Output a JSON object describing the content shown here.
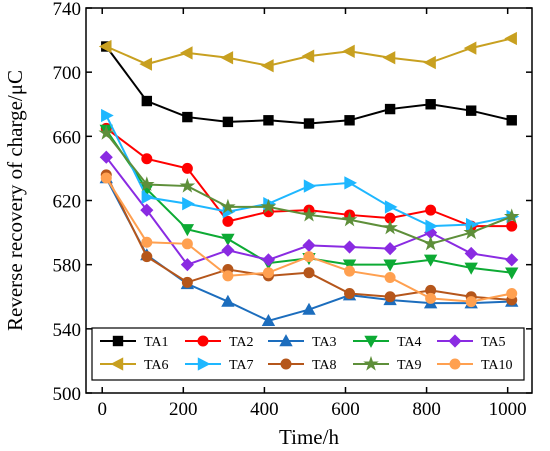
{
  "chart_data": {
    "type": "line",
    "xlabel": "Time/h",
    "ylabel": "Reverse recovery of charge/μC",
    "xlim": [
      -40,
      1060
    ],
    "ylim": [
      500,
      740
    ],
    "xticks": [
      0,
      200,
      400,
      600,
      800,
      1000
    ],
    "yticks": [
      500,
      540,
      580,
      620,
      660,
      700,
      740
    ],
    "legend_position": "bottom (inside plot, two rows)",
    "grid": false,
    "x": [
      10,
      110,
      210,
      310,
      410,
      510,
      610,
      710,
      810,
      910,
      1010
    ],
    "series": [
      {
        "name": "TA1",
        "color": "#000000",
        "marker": "square",
        "values": [
          716,
          682,
          672,
          669,
          670,
          668,
          670,
          677,
          680,
          676,
          670
        ]
      },
      {
        "name": "TA2",
        "color": "#ff0000",
        "marker": "circle",
        "values": [
          665,
          646,
          640,
          607,
          613,
          614,
          611,
          609,
          614,
          604,
          604
        ]
      },
      {
        "name": "TA3",
        "color": "#1c6dbd",
        "marker": "triangle-up",
        "values": [
          634,
          586,
          568,
          557,
          545,
          552,
          561,
          558,
          556,
          556,
          557
        ]
      },
      {
        "name": "TA4",
        "color": "#0daa34",
        "marker": "triangle-down",
        "values": [
          664,
          627,
          602,
          596,
          581,
          584,
          580,
          580,
          583,
          578,
          575
        ]
      },
      {
        "name": "TA5",
        "color": "#8a2be2",
        "marker": "diamond",
        "values": [
          647,
          614,
          580,
          589,
          583,
          592,
          591,
          590,
          600,
          587,
          583
        ]
      },
      {
        "name": "TA6",
        "color": "#c8a020",
        "marker": "triangle-left",
        "values": [
          716,
          705,
          712,
          709,
          704,
          710,
          713,
          709,
          706,
          715,
          721
        ]
      },
      {
        "name": "TA7",
        "color": "#1eb7ff",
        "marker": "triangle-right",
        "values": [
          673,
          622,
          618,
          613,
          618,
          629,
          631,
          616,
          604,
          605,
          610
        ]
      },
      {
        "name": "TA8",
        "color": "#b5561b",
        "marker": "circle",
        "values": [
          636,
          585,
          569,
          577,
          573,
          575,
          562,
          560,
          564,
          560,
          558
        ]
      },
      {
        "name": "TA9",
        "color": "#5e8f3a",
        "marker": "star",
        "values": [
          662,
          630,
          629,
          616,
          616,
          611,
          608,
          603,
          593,
          600,
          610
        ]
      },
      {
        "name": "TA10",
        "color": "#ffa050",
        "marker": "circle",
        "values": [
          634,
          594,
          593,
          573,
          575,
          585,
          576,
          572,
          559,
          557,
          562
        ]
      }
    ]
  }
}
